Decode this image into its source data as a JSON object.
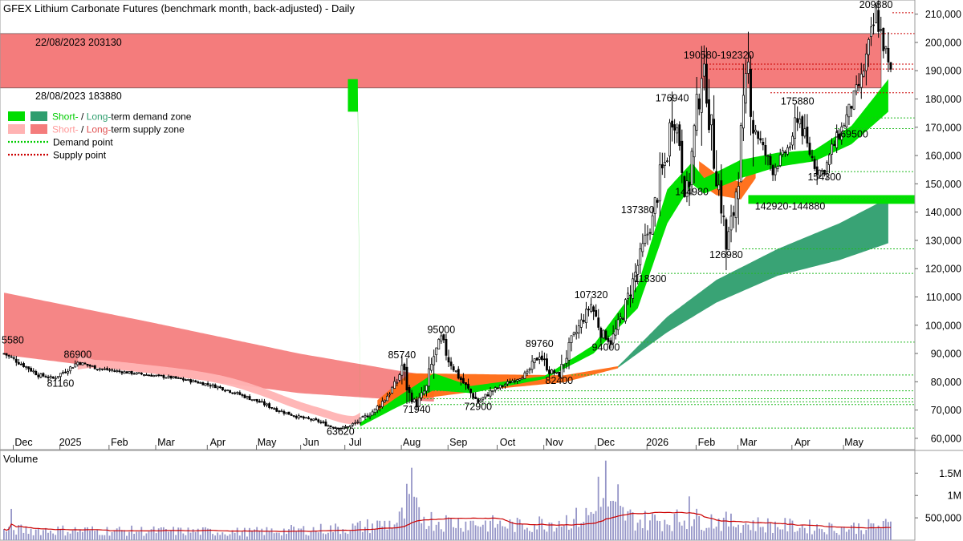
{
  "chart_data": {
    "type": "candlestick",
    "title": "GFEX Lithium Carbonate Futures (benchmark month, back-adjusted) - Daily",
    "price_axis": {
      "ylim": [
        56000,
        215000
      ],
      "ticks": [
        60000,
        70000,
        80000,
        90000,
        100000,
        110000,
        120000,
        130000,
        140000,
        150000,
        160000,
        170000,
        180000,
        190000,
        200000,
        210000
      ],
      "tick_labels": [
        "60,000",
        "70,000",
        "80,000",
        "90,000",
        "100,000",
        "110,000",
        "120,000",
        "130,000",
        "140,000",
        "150,000",
        "160,000",
        "170,000",
        "180,000",
        "190,000",
        "200,000",
        "210,000"
      ]
    },
    "x_axis": {
      "labels": [
        "Dec",
        "2025",
        "Feb",
        "Mar",
        "Apr",
        "May",
        "Jun",
        "Jul",
        "Aug",
        "Sep",
        "Oct",
        "Nov",
        "Dec",
        "2026",
        "Feb",
        "Mar",
        "Apr",
        "May"
      ],
      "label_index": [
        8,
        27,
        47,
        66,
        87,
        107,
        125,
        143,
        166,
        185,
        205,
        224,
        245,
        266,
        286,
        303,
        325,
        346
      ]
    },
    "volume_axis": {
      "label": "Volume",
      "ylim": [
        0,
        1900000
      ],
      "ticks": [
        500000,
        1000000,
        1500000
      ],
      "tick_labels": [
        "500,000",
        "1M",
        "1.5M"
      ]
    },
    "supply_box": {
      "top": 203130,
      "bottom": 183880,
      "top_label": "22/08/2023 203130",
      "bottom_label": "28/08/2023 183880",
      "color": "#f47c7c"
    },
    "price_path": [
      [
        0,
        90000
      ],
      [
        10,
        84800
      ],
      [
        14,
        82500
      ],
      [
        20,
        81200
      ],
      [
        27,
        85000
      ],
      [
        30,
        86900
      ],
      [
        38,
        84800
      ],
      [
        47,
        83600
      ],
      [
        58,
        82500
      ],
      [
        68,
        81500
      ],
      [
        78,
        80000
      ],
      [
        88,
        78000
      ],
      [
        96,
        75500
      ],
      [
        104,
        72800
      ],
      [
        112,
        69800
      ],
      [
        120,
        67500
      ],
      [
        128,
        66000
      ],
      [
        133,
        64200
      ],
      [
        137,
        63620
      ],
      [
        141,
        64400
      ],
      [
        146,
        67000
      ],
      [
        151,
        70000
      ],
      [
        155,
        74000
      ],
      [
        160,
        80000
      ],
      [
        162,
        85740
      ],
      [
        165,
        75000
      ],
      [
        168,
        71940
      ],
      [
        172,
        78000
      ],
      [
        175,
        89000
      ],
      [
        178,
        95000
      ],
      [
        181,
        88000
      ],
      [
        185,
        82000
      ],
      [
        190,
        76000
      ],
      [
        193,
        72900
      ],
      [
        199,
        77000
      ],
      [
        205,
        79500
      ],
      [
        213,
        83000
      ],
      [
        218,
        89760
      ],
      [
        222,
        84000
      ],
      [
        226,
        82400
      ],
      [
        231,
        94000
      ],
      [
        235,
        101000
      ],
      [
        239,
        107320
      ],
      [
        243,
        98000
      ],
      [
        247,
        94000
      ],
      [
        252,
        104000
      ],
      [
        257,
        118300
      ],
      [
        261,
        130000
      ],
      [
        264,
        137380
      ],
      [
        267,
        152000
      ],
      [
        270,
        160000
      ],
      [
        272,
        176940
      ],
      [
        275,
        165000
      ],
      [
        278,
        144980
      ],
      [
        282,
        175000
      ],
      [
        284,
        192320
      ],
      [
        286,
        183000
      ],
      [
        289,
        160000
      ],
      [
        292,
        143000
      ],
      [
        294,
        126980
      ],
      [
        297,
        140000
      ],
      [
        300,
        165000
      ],
      [
        303,
        190580
      ],
      [
        305,
        172000
      ],
      [
        309,
        162000
      ],
      [
        313,
        155000
      ],
      [
        317,
        160000
      ],
      [
        321,
        165000
      ],
      [
        323,
        175880
      ],
      [
        327,
        163000
      ],
      [
        331,
        155000
      ],
      [
        334,
        154300
      ],
      [
        337,
        162000
      ],
      [
        341,
        169500
      ],
      [
        345,
        178000
      ],
      [
        349,
        187000
      ],
      [
        352,
        198000
      ],
      [
        355,
        209880
      ],
      [
        357,
        203000
      ],
      [
        359,
        196000
      ],
      [
        360,
        190000
      ]
    ],
    "annotations": [
      {
        "text": "5580",
        "i": 0,
        "p": 93500
      },
      {
        "text": "86900",
        "i": 30,
        "p": 88500
      },
      {
        "text": "81160",
        "i": 23,
        "p": 78200
      },
      {
        "text": "63620",
        "i": 137,
        "p": 61200
      },
      {
        "text": "85740",
        "i": 162,
        "p": 88300
      },
      {
        "text": "71940",
        "i": 168,
        "p": 69000
      },
      {
        "text": "95000",
        "i": 178,
        "p": 97300
      },
      {
        "text": "72900",
        "i": 193,
        "p": 70000
      },
      {
        "text": "89760",
        "i": 218,
        "p": 92300
      },
      {
        "text": "82400",
        "i": 226,
        "p": 79300
      },
      {
        "text": "107320",
        "i": 239,
        "p": 109500
      },
      {
        "text": "94000",
        "i": 245,
        "p": 91000
      },
      {
        "text": "118300",
        "i": 263,
        "p": 115300
      },
      {
        "text": "137380",
        "i": 258,
        "p": 139600
      },
      {
        "text": "176940",
        "i": 272,
        "p": 179200
      },
      {
        "text": "144980",
        "i": 280,
        "p": 146000
      },
      {
        "text": "190580-192320",
        "i": 291,
        "p": 194300
      },
      {
        "text": "126980",
        "i": 294,
        "p": 123800
      },
      {
        "text": "142920-144880",
        "i": 320,
        "p": 140900
      },
      {
        "text": "175880",
        "i": 323,
        "p": 178000
      },
      {
        "text": "154300",
        "i": 334,
        "p": 151200
      },
      {
        "text": "169500",
        "i": 345,
        "p": 166400
      },
      {
        "text": "209880",
        "i": 355,
        "p": 212200
      }
    ],
    "supply_points": [
      210500,
      192320,
      190580,
      182200
    ],
    "demand_points": [
      173300,
      169500,
      154300,
      144880,
      127000,
      118300,
      94000,
      82400,
      76800,
      74000,
      72900,
      71940,
      63620
    ],
    "legend": [
      {
        "prefix": "Short-",
        "sep": " / ",
        "mid": "Long-",
        "rest": "term demand zone",
        "colors": [
          "#00dd00",
          "#2e9e6e"
        ]
      },
      {
        "prefix": "Short-",
        "sep": " / ",
        "mid": "Long-",
        "rest": "term supply zone",
        "colors": [
          "#ffb3b3",
          "#f47c7c"
        ]
      },
      {
        "label": "Demand point",
        "color": "#00cc00"
      },
      {
        "label": "Supply point",
        "color": "#cc0000"
      }
    ],
    "colors": {
      "up_candle": "#ffffff",
      "down_candle": "#000000",
      "volume_bar": "#9696c8",
      "volume_ma": "#cc0000",
      "short_demand": "#00e000",
      "long_demand": "#2e9e6e",
      "short_supply": "#ffb3b3",
      "long_supply": "#f47c7c",
      "orange_zone": "#ff6a13"
    }
  }
}
